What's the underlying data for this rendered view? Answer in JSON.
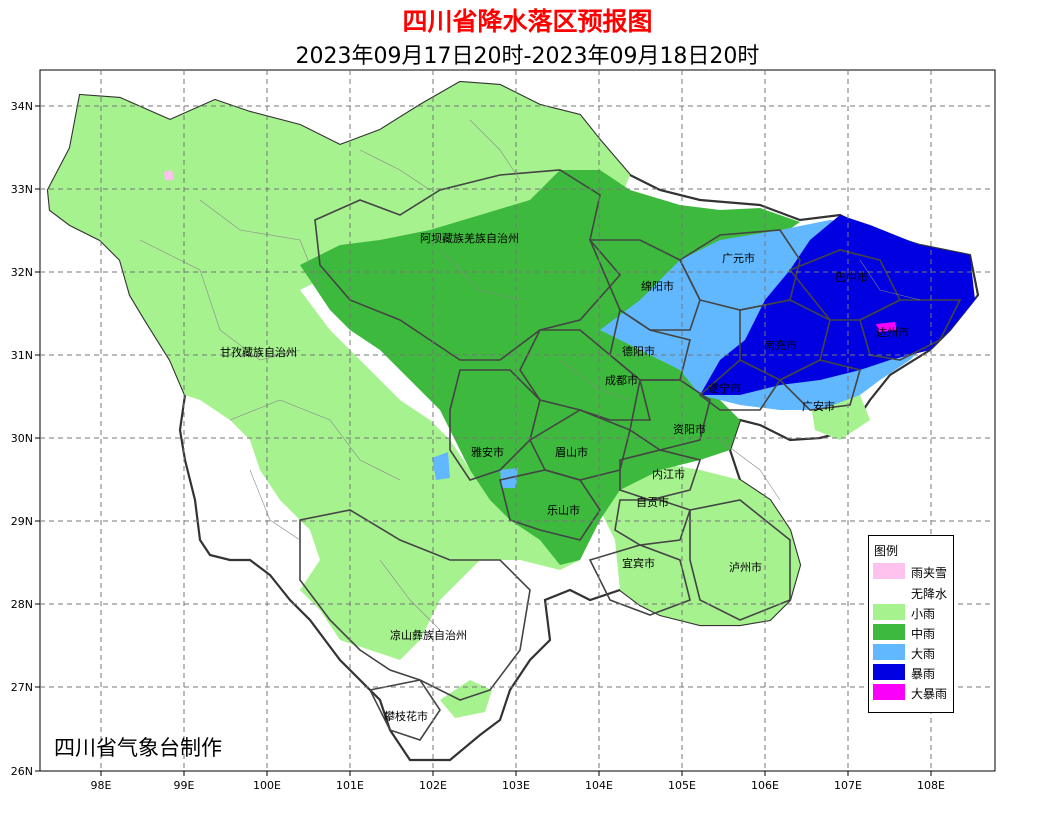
{
  "title": "四川省降水落区预报图",
  "subtitle": "2023年09月17日20时-2023年09月18日20时",
  "credit": "四川省气象台制作",
  "axes": {
    "lat_ticks": [
      "34N",
      "33N",
      "32N",
      "31N",
      "30N",
      "29N",
      "28N",
      "27N",
      "26N"
    ],
    "lon_ticks": [
      "98E",
      "99E",
      "100E",
      "101E",
      "102E",
      "103E",
      "104E",
      "105E",
      "106E",
      "107E",
      "108E"
    ]
  },
  "regions": [
    "阿坝藏族羌族自治州",
    "甘孜藏族自治州",
    "凉山彝族自治州",
    "攀枝花市",
    "雅安市",
    "眉山市",
    "乐山市",
    "成都市",
    "德阳市",
    "绵阳市",
    "广元市",
    "巴中市",
    "达州市",
    "南充市",
    "遂宁市",
    "广安市",
    "资阳市",
    "内江市",
    "自贡市",
    "宜宾市",
    "泸州市"
  ],
  "legend": {
    "title": "图例",
    "items": [
      {
        "label": "雨夹雪",
        "color": "#ffc1ee"
      },
      {
        "label": "无降水",
        "color": "#ffffff"
      },
      {
        "label": "小雨",
        "color": "#a6f28f"
      },
      {
        "label": "中雨",
        "color": "#3dba3d"
      },
      {
        "label": "大雨",
        "color": "#61b8ff"
      },
      {
        "label": "暴雨",
        "color": "#0000e1"
      },
      {
        "label": "大暴雨",
        "color": "#fa00fa"
      }
    ]
  },
  "colors": {
    "light_rain": "#a6f28f",
    "moderate_rain": "#3dba3d",
    "heavy_rain": "#61b8ff",
    "rainstorm": "#0000e1",
    "downpour": "#fa00fa",
    "sleet": "#ffc1ee"
  }
}
